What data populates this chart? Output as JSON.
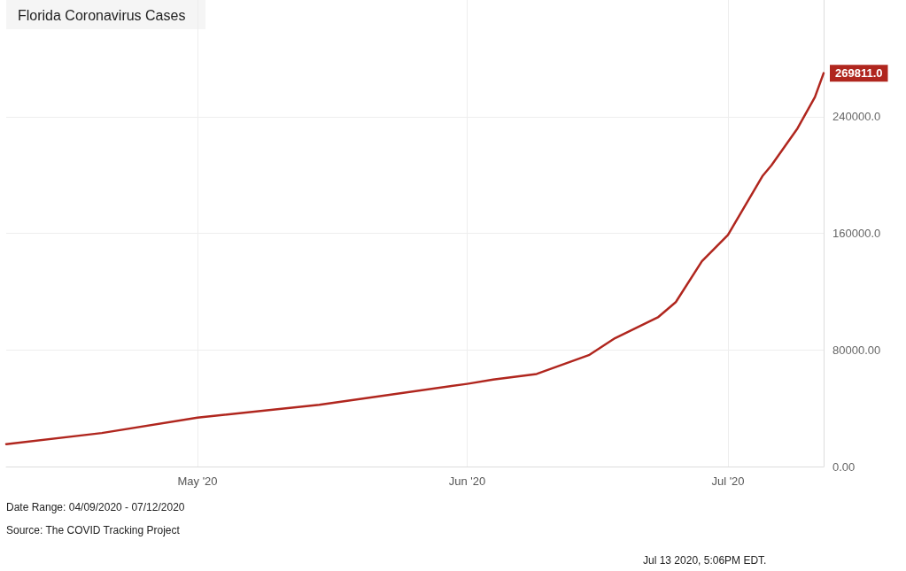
{
  "chart_data": {
    "type": "line",
    "title": "Florida Coronavirus Cases",
    "x": [
      "2020-04-09",
      "2020-04-20",
      "2020-05-01",
      "2020-05-15",
      "2020-06-01",
      "2020-06-04",
      "2020-06-09",
      "2020-06-15",
      "2020-06-18",
      "2020-06-23",
      "2020-06-25",
      "2020-06-28",
      "2020-07-01",
      "2020-07-05",
      "2020-07-06",
      "2020-07-09",
      "2020-07-11",
      "2020-07-12"
    ],
    "series": [
      {
        "color": "#b0261e",
        "values": [
          15400,
          23000,
          33500,
          42400,
          56700,
          59600,
          63500,
          76400,
          88000,
          102600,
          112800,
          140800,
          158900,
          199500,
          206600,
          232000,
          253400,
          269811
        ]
      }
    ],
    "xlim": [
      "2020-04-09",
      "2020-07-12"
    ],
    "xticks": [
      {
        "value": "2020-05-01",
        "label": "May '20"
      },
      {
        "value": "2020-06-01",
        "label": "Jun '20"
      },
      {
        "value": "2020-07-01",
        "label": "Jul '20"
      }
    ],
    "ylim": [
      0,
      320000
    ],
    "yticks": [
      {
        "value": 0,
        "label": "0.00"
      },
      {
        "value": 80000,
        "label": "80000.00"
      },
      {
        "value": 160000,
        "label": "160000.0"
      },
      {
        "value": 240000,
        "label": "240000.0"
      }
    ],
    "grid": true,
    "marker": "none",
    "line_style": "solid",
    "annotations": [
      {
        "text": "269811.0",
        "x": "2020-07-12",
        "y": 269811
      },
      "Date Range: 04/09/2020 - 07/12/2020",
      "Source: The COVID Tracking Project",
      "Jul 13 2020, 5:06PM EDT."
    ]
  }
}
